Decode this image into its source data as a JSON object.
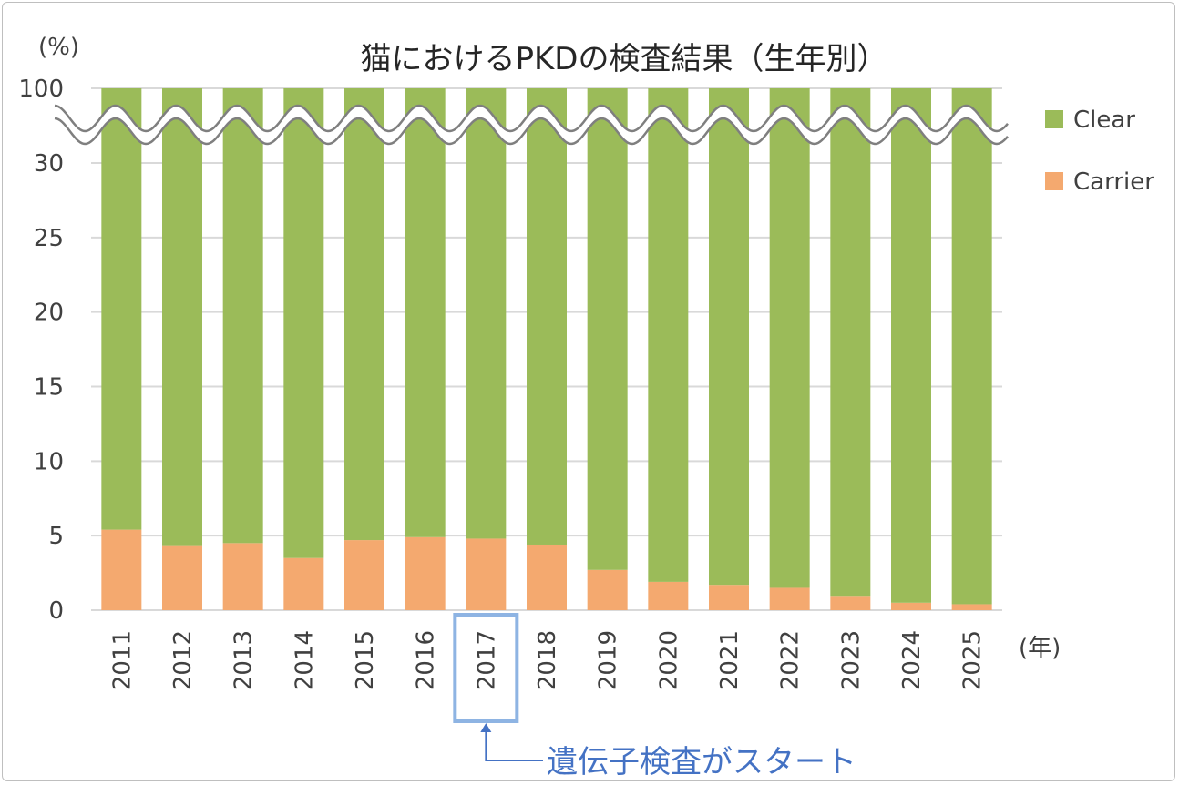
{
  "chart_data": {
    "type": "bar",
    "stacked": true,
    "title": "猫におけるPKDの検査結果（生年別）",
    "ylabel": "(%)",
    "xlabel": "(年)",
    "yticks": [
      "0",
      "5",
      "10",
      "15",
      "20",
      "25",
      "30",
      "100"
    ],
    "axis_break": {
      "from": 30,
      "to": 100
    },
    "categories": [
      "2011",
      "2012",
      "2013",
      "2014",
      "2015",
      "2016",
      "2017",
      "2018",
      "2019",
      "2020",
      "2021",
      "2022",
      "2023",
      "2024",
      "2025"
    ],
    "series": [
      {
        "name": "Carrier",
        "color": "#f4a96f",
        "values": [
          5.4,
          4.3,
          4.5,
          3.5,
          4.7,
          4.9,
          4.8,
          4.4,
          2.7,
          1.9,
          1.7,
          1.5,
          0.9,
          0.5,
          0.4
        ]
      },
      {
        "name": "Clear",
        "color": "#9bbb59",
        "values": [
          94.6,
          95.7,
          95.5,
          96.5,
          95.3,
          95.1,
          95.2,
          95.6,
          97.3,
          98.1,
          98.3,
          98.5,
          99.1,
          99.5,
          99.6
        ]
      }
    ],
    "legend": [
      {
        "name": "Clear",
        "color": "#9bbb59"
      },
      {
        "name": "Carrier",
        "color": "#f4a96f"
      }
    ],
    "highlight": {
      "category": "2017",
      "color": "#8eb4e3"
    },
    "annotation": {
      "text": "遺伝子検査がスタート",
      "color": "#4472c4"
    }
  }
}
